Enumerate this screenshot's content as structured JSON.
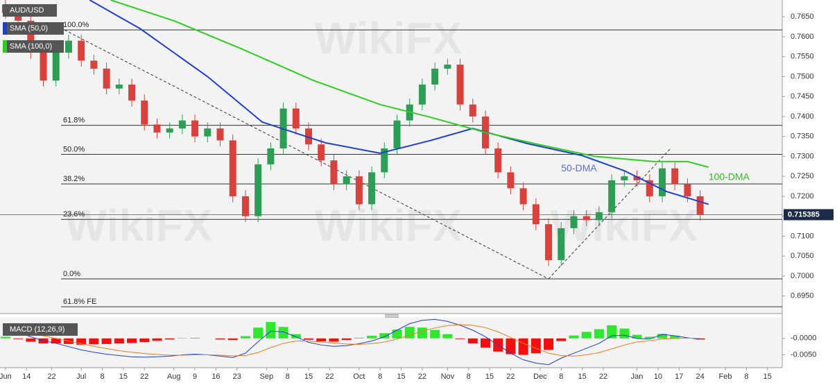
{
  "chart_data": {
    "type": "candlestick",
    "symbol": "AUD/USD",
    "watermark": "WikiFX",
    "legend": [
      "SMA (50,0)",
      "SMA (100,0)"
    ],
    "xlim": [
      -1.3,
      184.5
    ],
    "xticks": [
      {
        "value": 0,
        "label": "Jun"
      },
      {
        "value": 5,
        "label": "14"
      },
      {
        "value": 11,
        "label": "22"
      },
      {
        "value": 18,
        "label": "Jul"
      },
      {
        "value": 23,
        "label": "8"
      },
      {
        "value": 28,
        "label": "15"
      },
      {
        "value": 33,
        "label": "22"
      },
      {
        "value": 40,
        "label": "Aug"
      },
      {
        "value": 45,
        "label": "9"
      },
      {
        "value": 50,
        "label": "16"
      },
      {
        "value": 55,
        "label": "23"
      },
      {
        "value": 62,
        "label": "Sep"
      },
      {
        "value": 67,
        "label": "8"
      },
      {
        "value": 72,
        "label": "15"
      },
      {
        "value": 77,
        "label": "22"
      },
      {
        "value": 84,
        "label": "Oct"
      },
      {
        "value": 89,
        "label": "8"
      },
      {
        "value": 94,
        "label": "15"
      },
      {
        "value": 99,
        "label": "22"
      },
      {
        "value": 105,
        "label": "Nov"
      },
      {
        "value": 110,
        "label": "8"
      },
      {
        "value": 115,
        "label": "15"
      },
      {
        "value": 120,
        "label": "22"
      },
      {
        "value": 127,
        "label": "Dec"
      },
      {
        "value": 132,
        "label": "8"
      },
      {
        "value": 137,
        "label": "15"
      },
      {
        "value": 142,
        "label": "22"
      },
      {
        "value": 150,
        "label": "Jan"
      },
      {
        "value": 155,
        "label": "10"
      },
      {
        "value": 160,
        "label": "17"
      },
      {
        "value": 165,
        "label": "24"
      },
      {
        "value": 171,
        "label": "Feb"
      },
      {
        "value": 176,
        "label": "8"
      },
      {
        "value": 181,
        "label": "15"
      }
    ],
    "ylim": [
      0.6906,
      0.7692
    ],
    "yticks": [
      {
        "value": 0.765,
        "label": "0.7650"
      },
      {
        "value": 0.76,
        "label": "0.7600"
      },
      {
        "value": 0.755,
        "label": "0.7550"
      },
      {
        "value": 0.75,
        "label": "0.7500"
      },
      {
        "value": 0.745,
        "label": "0.7450"
      },
      {
        "value": 0.74,
        "label": "0.7400"
      },
      {
        "value": 0.735,
        "label": "0.7350"
      },
      {
        "value": 0.73,
        "label": "0.7300"
      },
      {
        "value": 0.725,
        "label": "0.7250"
      },
      {
        "value": 0.72,
        "label": "0.7200"
      },
      {
        "value": 0.715,
        "label": "0.7150"
      },
      {
        "value": 0.71,
        "label": "0.7100"
      },
      {
        "value": 0.705,
        "label": "0.7050"
      },
      {
        "value": 0.7,
        "label": "0.7000"
      },
      {
        "value": 0.695,
        "label": "0.6950"
      }
    ],
    "last_price": 0.715385,
    "up_color": "#2e9e57",
    "down_color": "#d9423c",
    "candles": {
      "x": [
        0,
        3,
        6,
        9,
        12,
        15,
        18,
        21,
        24,
        27,
        30,
        33,
        36,
        39,
        42,
        45,
        48,
        51,
        54,
        57,
        60,
        63,
        66,
        69,
        72,
        75,
        78,
        81,
        84,
        87,
        90,
        93,
        96,
        99,
        102,
        105,
        108,
        111,
        114,
        117,
        120,
        123,
        126,
        129,
        132,
        135,
        138,
        141,
        144,
        147,
        150,
        153,
        156,
        159,
        162,
        165
      ],
      "open": [
        0.768,
        0.766,
        0.764,
        0.756,
        0.749,
        0.756,
        0.759,
        0.754,
        0.752,
        0.747,
        0.748,
        0.744,
        0.738,
        0.736,
        0.737,
        0.739,
        0.735,
        0.737,
        0.734,
        0.72,
        0.715,
        0.728,
        0.732,
        0.742,
        0.737,
        0.733,
        0.729,
        0.723,
        0.725,
        0.718,
        0.726,
        0.732,
        0.739,
        0.743,
        0.748,
        0.752,
        0.753,
        0.743,
        0.74,
        0.732,
        0.726,
        0.722,
        0.718,
        0.713,
        0.704,
        0.712,
        0.715,
        0.714,
        0.716,
        0.724,
        0.725,
        0.724,
        0.72,
        0.727,
        0.723,
        0.72
      ],
      "high": [
        0.7695,
        0.7675,
        0.7655,
        0.7575,
        0.7575,
        0.7605,
        0.7605,
        0.7555,
        0.7535,
        0.7495,
        0.7495,
        0.7455,
        0.7395,
        0.7385,
        0.7405,
        0.7405,
        0.7385,
        0.7385,
        0.7355,
        0.7215,
        0.7295,
        0.7335,
        0.7435,
        0.7435,
        0.7385,
        0.7345,
        0.7305,
        0.7265,
        0.7265,
        0.7275,
        0.7335,
        0.7405,
        0.7445,
        0.7495,
        0.7535,
        0.7545,
        0.7545,
        0.7445,
        0.7415,
        0.7335,
        0.7275,
        0.7235,
        0.7195,
        0.7145,
        0.7135,
        0.7165,
        0.7165,
        0.7175,
        0.7255,
        0.7265,
        0.7265,
        0.7255,
        0.7285,
        0.7285,
        0.7245,
        0.7215
      ],
      "low": [
        0.7645,
        0.7625,
        0.7545,
        0.7475,
        0.7475,
        0.7545,
        0.7525,
        0.7505,
        0.7455,
        0.7455,
        0.7425,
        0.7365,
        0.7345,
        0.7345,
        0.7355,
        0.7335,
        0.7335,
        0.7325,
        0.7185,
        0.7135,
        0.7135,
        0.7265,
        0.7305,
        0.7355,
        0.7315,
        0.7275,
        0.7215,
        0.7215,
        0.7165,
        0.7165,
        0.7245,
        0.7305,
        0.7375,
        0.7415,
        0.7465,
        0.7505,
        0.7415,
        0.7385,
        0.7305,
        0.7245,
        0.7205,
        0.7165,
        0.7115,
        0.7025,
        0.7025,
        0.7105,
        0.7125,
        0.7125,
        0.7145,
        0.7225,
        0.7225,
        0.7185,
        0.7185,
        0.7215,
        0.7185,
        0.7139
      ],
      "close": [
        0.766,
        0.764,
        0.756,
        0.749,
        0.756,
        0.759,
        0.754,
        0.752,
        0.747,
        0.748,
        0.744,
        0.738,
        0.736,
        0.737,
        0.739,
        0.735,
        0.737,
        0.734,
        0.72,
        0.715,
        0.728,
        0.732,
        0.742,
        0.737,
        0.733,
        0.729,
        0.723,
        0.725,
        0.718,
        0.726,
        0.732,
        0.739,
        0.743,
        0.748,
        0.752,
        0.753,
        0.743,
        0.74,
        0.732,
        0.726,
        0.722,
        0.718,
        0.713,
        0.704,
        0.712,
        0.715,
        0.714,
        0.716,
        0.724,
        0.725,
        0.724,
        0.72,
        0.727,
        0.723,
        0.72,
        0.7154
      ]
    },
    "series": [
      {
        "name": "SMA (50,0)",
        "color": "#1f3fcf",
        "x": [
          20,
          32,
          48,
          61,
          76,
          89,
          101,
          111,
          124,
          137,
          147,
          157,
          167
        ],
        "values": [
          0.7692,
          0.762,
          0.75,
          0.7386,
          0.7334,
          0.7308,
          0.734,
          0.737,
          0.7332,
          0.7302,
          0.7264,
          0.7212,
          0.718
        ]
      },
      {
        "name": "SMA (100,0)",
        "color": "#2fcf1f",
        "x": [
          25,
          40,
          56,
          73,
          89,
          101,
          114,
          127,
          140,
          154,
          162,
          167
        ],
        "values": [
          0.7692,
          0.764,
          0.757,
          0.7491,
          0.743,
          0.7398,
          0.736,
          0.7329,
          0.73,
          0.7287,
          0.7287,
          0.7273
        ]
      }
    ],
    "annotations": [
      {
        "text": "50-DMA",
        "color": "#5a6ee0",
        "x": 132,
        "y": 0.7269
      },
      {
        "text": "100-DMA",
        "color": "#2fbf1f",
        "x": 167,
        "y": 0.7247
      }
    ],
    "fib_levels": [
      {
        "label": "100.0%",
        "value": 0.7617
      },
      {
        "label": "61.8%",
        "value": 0.7378
      },
      {
        "label": "50.0%",
        "value": 0.7305
      },
      {
        "label": "38.2%",
        "value": 0.7231
      },
      {
        "label": "23.6%",
        "value": 0.7142
      },
      {
        "label": "0.0%",
        "value": 0.6993
      },
      {
        "label": "61.8% FE",
        "value": 0.6923
      }
    ],
    "trendlines": [
      {
        "x": [
          14,
          129
        ],
        "y": [
          0.7617,
          0.6993
        ]
      },
      {
        "x": [
          129,
          158
        ],
        "y": [
          0.6993,
          0.732
        ]
      }
    ],
    "macd": {
      "label": "MACD (12,26,9)",
      "ylim": [
        -0.0089,
        0.0063
      ],
      "yticks": [
        {
          "value": 0,
          "label": "-0.0000"
        },
        {
          "value": -0.005,
          "label": "-0.0050"
        }
      ],
      "macd_color": "#1f3fcf",
      "signal_color": "#f07a1a",
      "macd": [
        0.003,
        0.002,
        0.0005,
        -0.0007,
        -0.0015,
        -0.0025,
        -0.0035,
        -0.0042,
        -0.0048,
        -0.0052,
        -0.0056,
        -0.0057,
        -0.0056,
        -0.0054,
        -0.005,
        -0.0048,
        -0.005,
        -0.0054,
        -0.0058,
        -0.0045,
        -0.001,
        0.0022,
        0.002,
        0.0005,
        -0.0012,
        -0.002,
        -0.0024,
        -0.0022,
        -0.0016,
        -0.0008,
        0.0005,
        0.0025,
        0.0045,
        0.0055,
        0.0058,
        0.0052,
        0.004,
        0.0025,
        0.0005,
        -0.002,
        -0.0045,
        -0.0065,
        -0.0075,
        -0.008,
        -0.006,
        -0.0045,
        -0.003,
        -0.0015,
        0.0008,
        0.001,
        0,
        -0.0002,
        0.0012,
        0.0008,
        0.0002,
        -0.0003
      ],
      "signal": [
        0.0025,
        0.0022,
        0.0015,
        0.0008,
        0,
        -0.0008,
        -0.0016,
        -0.0024,
        -0.0031,
        -0.0037,
        -0.0042,
        -0.0046,
        -0.0049,
        -0.0051,
        -0.0051,
        -0.005,
        -0.005,
        -0.0051,
        -0.0053,
        -0.0052,
        -0.0043,
        -0.0028,
        -0.0015,
        -0.0008,
        -0.0008,
        -0.0011,
        -0.0014,
        -0.0017,
        -0.0018,
        -0.0016,
        -0.0011,
        -0.0002,
        0.001,
        0.0022,
        0.0032,
        0.0039,
        0.0042,
        0.004,
        0.0033,
        0.002,
        0.0003,
        -0.0015,
        -0.003,
        -0.0045,
        -0.0052,
        -0.0054,
        -0.005,
        -0.0043,
        -0.0032,
        -0.002,
        -0.0011,
        -0.0007,
        -0.0002,
        0,
        0.0001,
        0
      ],
      "hist": [
        0.0005,
        -0.0002,
        -0.001,
        -0.0015,
        -0.0015,
        -0.0017,
        -0.0019,
        -0.0018,
        -0.0017,
        -0.0015,
        -0.0014,
        -0.0011,
        -0.0007,
        -0.0003,
        0.0001,
        0.0002,
        0,
        -0.0003,
        -0.0005,
        0.0007,
        0.0033,
        0.005,
        0.0035,
        0.0013,
        -0.0004,
        -0.0009,
        -0.001,
        -0.0005,
        0.0002,
        0.0008,
        0.0016,
        0.0027,
        0.0035,
        0.0033,
        0.0026,
        0.0013,
        -0.0002,
        -0.0015,
        -0.0028,
        -0.004,
        -0.0048,
        -0.005,
        -0.0045,
        -0.0035,
        -0.0008,
        0.0009,
        0.002,
        0.0028,
        0.004,
        0.003,
        0.0011,
        0.0005,
        0.0014,
        0.0008,
        0.0001,
        -0.0003
      ]
    }
  }
}
